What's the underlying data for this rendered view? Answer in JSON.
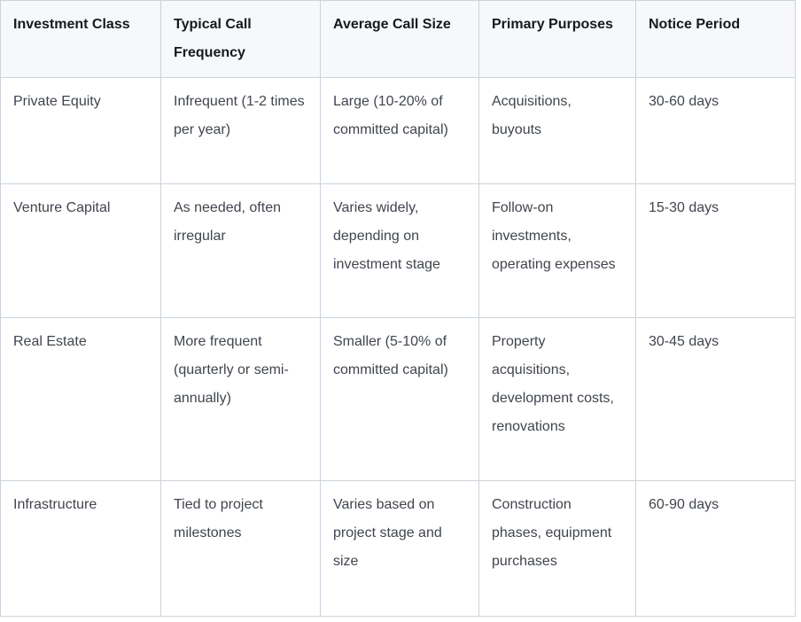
{
  "colors": {
    "header_bg": "#f7f8fa",
    "border": "#ccd3db",
    "header_text": "#17191d",
    "body_text": "#40454d",
    "page_bg": "#ffffff"
  },
  "table": {
    "columns": [
      "Investment Class",
      "Typical Call Frequency",
      "Average Call Size",
      "Primary Purposes",
      "Notice Period"
    ],
    "rows": [
      {
        "investment_class": "Private Equity",
        "typical_call_frequency": "Infrequent (1-2 times per year)",
        "average_call_size": "Large (10-20% of committed capital)",
        "primary_purposes": "Acquisitions, buyouts",
        "notice_period": "30-60 days"
      },
      {
        "investment_class": "Venture Capital",
        "typical_call_frequency": "As needed, often irregular",
        "average_call_size": "Varies widely, depending on investment stage",
        "primary_purposes": "Follow-on investments, operating expenses",
        "notice_period": "15-30 days"
      },
      {
        "investment_class": "Real Estate",
        "typical_call_frequency": "More frequent (quarterly or semi-annually)",
        "average_call_size": "Smaller (5-10% of committed capital)",
        "primary_purposes": "Property acquisitions, development costs, renovations",
        "notice_period": "30-45 days"
      },
      {
        "investment_class": "Infrastructure",
        "typical_call_frequency": "Tied to project milestones",
        "average_call_size": "Varies based on project stage and size",
        "primary_purposes": "Construction phases, equipment purchases",
        "notice_period": "60-90 days"
      }
    ],
    "row_keys": [
      "investment_class",
      "typical_call_frequency",
      "average_call_size",
      "primary_purposes",
      "notice_period"
    ]
  }
}
